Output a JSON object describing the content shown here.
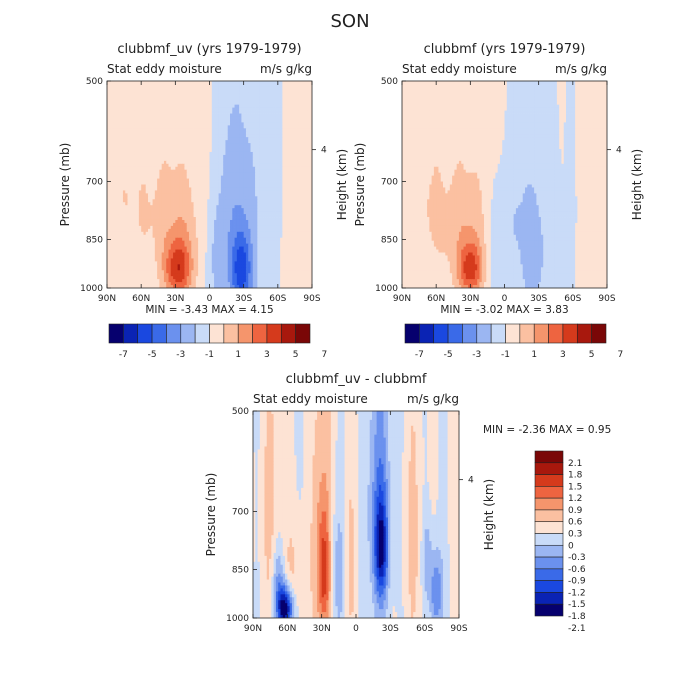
{
  "figure": {
    "title": "SON"
  },
  "colors": {
    "fill_scale": [
      "#06006e",
      "#0a23b4",
      "#1a48e0",
      "#3a6ae8",
      "#6b91ee",
      "#9bb6f2",
      "#c9dbf8",
      "#fde3d4",
      "#fbc0a1",
      "#f5956c",
      "#ee6440",
      "#d53a1c",
      "#a8180d",
      "#7a0707"
    ],
    "background_band": "#d6e6fb",
    "axes": "#222222"
  },
  "chart_data": [
    {
      "type": "heatmap",
      "id": "clubbmf_uv",
      "title": "clubbmf_uv (yrs 1979-1979)",
      "subtitle_left": "Stat eddy moisture",
      "subtitle_right": "m/s g/kg",
      "xlabel": "",
      "ylabel": "Pressure (mb)",
      "ylabel_right": "Height (km)",
      "x_ticks": [
        "90N",
        "60N",
        "30N",
        "0",
        "30S",
        "60S",
        "90S"
      ],
      "y_ticks": [
        "500",
        "700",
        "850",
        "1000"
      ],
      "y_ticks_right": [
        "4"
      ],
      "xlim": [
        90,
        -90
      ],
      "ylim": [
        1000,
        500
      ],
      "stats": "MIN =  -3.43   MAX =   4.15",
      "min": -3.43,
      "max": 4.15,
      "features": [
        {
          "lat": 40,
          "p": 620,
          "w": 28,
          "h": 260,
          "v": 0.6
        },
        {
          "lat": 25,
          "p": 880,
          "w": 12,
          "h": 130,
          "v": 1.5
        },
        {
          "lat": 28,
          "p": 940,
          "w": 8,
          "h": 60,
          "v": 3.4
        },
        {
          "lat": 52,
          "p": 800,
          "w": 20,
          "h": 110,
          "v": 0.5
        },
        {
          "lat": 75,
          "p": 640,
          "w": 10,
          "h": 250,
          "v": 0.5
        },
        {
          "lat": -28,
          "p": 850,
          "w": 12,
          "h": 270,
          "v": -1.8
        },
        {
          "lat": -28,
          "p": 940,
          "w": 6,
          "h": 80,
          "v": -3.2
        },
        {
          "lat": -8,
          "p": 900,
          "w": 8,
          "h": 120,
          "v": -1.2
        },
        {
          "lat": -15,
          "p": 660,
          "w": 6,
          "h": 110,
          "v": -0.5
        },
        {
          "lat": -80,
          "p": 620,
          "w": 5,
          "h": 120,
          "v": 0.4
        },
        {
          "lat": -72,
          "p": 960,
          "w": 6,
          "h": 60,
          "v": 0.4
        }
      ]
    },
    {
      "type": "heatmap",
      "id": "clubbmf",
      "title": "clubbmf (yrs 1979-1979)",
      "subtitle_left": "Stat eddy moisture",
      "subtitle_right": "m/s g/kg",
      "xlabel": "",
      "ylabel": "Pressure (mb)",
      "ylabel_right": "Height (km)",
      "x_ticks": [
        "90N",
        "60N",
        "30N",
        "0",
        "30S",
        "60S",
        "90S"
      ],
      "y_ticks": [
        "500",
        "700",
        "850",
        "1000"
      ],
      "y_ticks_right": [
        "4"
      ],
      "xlim": [
        90,
        -90
      ],
      "ylim": [
        1000,
        500
      ],
      "stats": "MIN =  -3.02   MAX =   3.83",
      "min": -3.02,
      "max": 3.83,
      "features": [
        {
          "lat": 40,
          "p": 640,
          "w": 30,
          "h": 250,
          "v": 0.6
        },
        {
          "lat": 30,
          "p": 880,
          "w": 12,
          "h": 130,
          "v": 1.4
        },
        {
          "lat": 30,
          "p": 940,
          "w": 7,
          "h": 55,
          "v": 3.3
        },
        {
          "lat": 55,
          "p": 820,
          "w": 18,
          "h": 100,
          "v": 0.5
        },
        {
          "lat": 70,
          "p": 620,
          "w": 10,
          "h": 220,
          "v": 0.5
        },
        {
          "lat": -25,
          "p": 880,
          "w": 12,
          "h": 200,
          "v": -1.4
        },
        {
          "lat": 5,
          "p": 860,
          "w": 8,
          "h": 140,
          "v": -1.0
        },
        {
          "lat": -10,
          "p": 720,
          "w": 6,
          "h": 140,
          "v": -0.5
        },
        {
          "lat": -80,
          "p": 640,
          "w": 5,
          "h": 130,
          "v": 0.4
        },
        {
          "lat": -75,
          "p": 960,
          "w": 6,
          "h": 60,
          "v": 0.4
        }
      ]
    },
    {
      "type": "heatmap",
      "id": "difference",
      "title": "clubbmf_uv - clubbmf",
      "subtitle_left": "Stat eddy moisture",
      "subtitle_right": "m/s g/kg",
      "xlabel": "",
      "ylabel": "Pressure (mb)",
      "ylabel_right": "Height (km)",
      "x_ticks": [
        "90N",
        "60N",
        "30N",
        "0",
        "30S",
        "60S",
        "90S"
      ],
      "y_ticks": [
        "500",
        "700",
        "850",
        "1000"
      ],
      "y_ticks_right": [
        "4"
      ],
      "xlim": [
        90,
        -90
      ],
      "ylim": [
        1000,
        500
      ],
      "stats": "MIN =  -2.36   MAX =   0.95",
      "min": -2.36,
      "max": 0.95,
      "features": [
        {
          "lat": 30,
          "p": 740,
          "w": 6,
          "h": 300,
          "v": 0.6
        },
        {
          "lat": 28,
          "p": 860,
          "w": 4,
          "h": 120,
          "v": 0.95
        },
        {
          "lat": 75,
          "p": 700,
          "w": 6,
          "h": 300,
          "v": 0.35
        },
        {
          "lat": 55,
          "p": 880,
          "w": 8,
          "h": 130,
          "v": 0.35
        },
        {
          "lat": 5,
          "p": 840,
          "w": 5,
          "h": 200,
          "v": 0.35
        },
        {
          "lat": -50,
          "p": 760,
          "w": 6,
          "h": 250,
          "v": 0.35
        },
        {
          "lat": -20,
          "p": 680,
          "w": 7,
          "h": 230,
          "v": -0.8
        },
        {
          "lat": -22,
          "p": 790,
          "w": 4,
          "h": 90,
          "v": -1.35
        },
        {
          "lat": 15,
          "p": 860,
          "w": 5,
          "h": 130,
          "v": -0.5
        },
        {
          "lat": 62,
          "p": 970,
          "w": 5,
          "h": 50,
          "v": -2.2
        },
        {
          "lat": 68,
          "p": 880,
          "w": 4,
          "h": 70,
          "v": -0.7
        },
        {
          "lat": -70,
          "p": 920,
          "w": 4,
          "h": 90,
          "v": -0.9
        },
        {
          "lat": -62,
          "p": 820,
          "w": 3,
          "h": 80,
          "v": -0.5
        }
      ]
    }
  ],
  "colorbars": [
    {
      "id": "colorbar-left",
      "orientation": "horizontal",
      "levels": [
        -7,
        -6,
        -5,
        -4,
        -3,
        -2,
        -1,
        0,
        1,
        2,
        3,
        4,
        5,
        6,
        7
      ],
      "labels": [
        "-7",
        "-5",
        "-3",
        "-1",
        "1",
        "3",
        "5",
        "7"
      ]
    },
    {
      "id": "colorbar-right",
      "orientation": "horizontal",
      "levels": [
        -7,
        -6,
        -5,
        -4,
        -3,
        -2,
        -1,
        0,
        1,
        2,
        3,
        4,
        5,
        6,
        7
      ],
      "labels": [
        "-7",
        "-5",
        "-3",
        "-1",
        "1",
        "3",
        "5",
        "7"
      ]
    },
    {
      "id": "colorbar-diff",
      "orientation": "vertical",
      "levels": [
        -2.1,
        -1.8,
        -1.5,
        -1.2,
        -0.9,
        -0.6,
        -0.3,
        0,
        0.3,
        0.6,
        0.9,
        1.2,
        1.5,
        1.8,
        2.1
      ],
      "labels": [
        "2.1",
        "1.8",
        "1.5",
        "1.2",
        "0.9",
        "0.6",
        "0.3",
        "0",
        "-0.3",
        "-0.6",
        "-0.9",
        "-1.2",
        "-1.5",
        "-1.8",
        "-2.1"
      ]
    }
  ]
}
